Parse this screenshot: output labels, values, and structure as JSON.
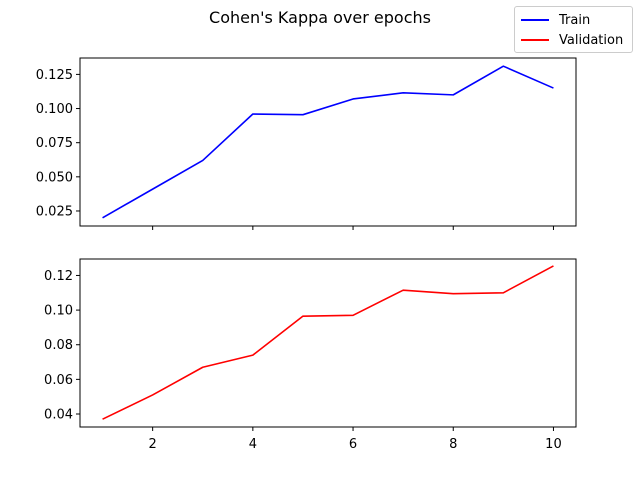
{
  "title": "Cohen's Kappa over epochs",
  "legend": [
    {
      "label": "Train",
      "color": "#0000ff"
    },
    {
      "label": "Validation",
      "color": "#ff0000"
    }
  ],
  "chart_data": [
    {
      "type": "line",
      "title": "Cohen's Kappa over epochs",
      "x": [
        1,
        2,
        3,
        4,
        5,
        6,
        7,
        8,
        9,
        10
      ],
      "series": [
        {
          "name": "Train",
          "color": "#0000ff",
          "values": [
            0.02,
            0.041,
            0.062,
            0.096,
            0.0955,
            0.107,
            0.1115,
            0.11,
            0.131,
            0.115
          ]
        }
      ],
      "xlim": [
        0.55,
        10.45
      ],
      "ylim": [
        0.014,
        0.137
      ],
      "yticks": [
        0.025,
        0.05,
        0.075,
        0.1,
        0.125
      ],
      "ytick_labels": [
        "0.025",
        "0.050",
        "0.075",
        "0.100",
        "0.125"
      ],
      "xticks": [
        2,
        4,
        6,
        8,
        10
      ],
      "xtick_labels": [
        "",
        "",
        "",
        "",
        ""
      ],
      "grid": false
    },
    {
      "type": "line",
      "x": [
        1,
        2,
        3,
        4,
        5,
        6,
        7,
        8,
        9,
        10
      ],
      "series": [
        {
          "name": "Validation",
          "color": "#ff0000",
          "values": [
            0.037,
            0.051,
            0.067,
            0.074,
            0.0965,
            0.097,
            0.1115,
            0.1095,
            0.11,
            0.1255
          ]
        }
      ],
      "xlim": [
        0.55,
        10.45
      ],
      "ylim": [
        0.0325,
        0.1295
      ],
      "yticks": [
        0.04,
        0.06,
        0.08,
        0.1,
        0.12
      ],
      "ytick_labels": [
        "0.04",
        "0.06",
        "0.08",
        "0.10",
        "0.12"
      ],
      "xticks": [
        2,
        4,
        6,
        8,
        10
      ],
      "xtick_labels": [
        "2",
        "4",
        "6",
        "8",
        "10"
      ],
      "grid": false
    }
  ]
}
